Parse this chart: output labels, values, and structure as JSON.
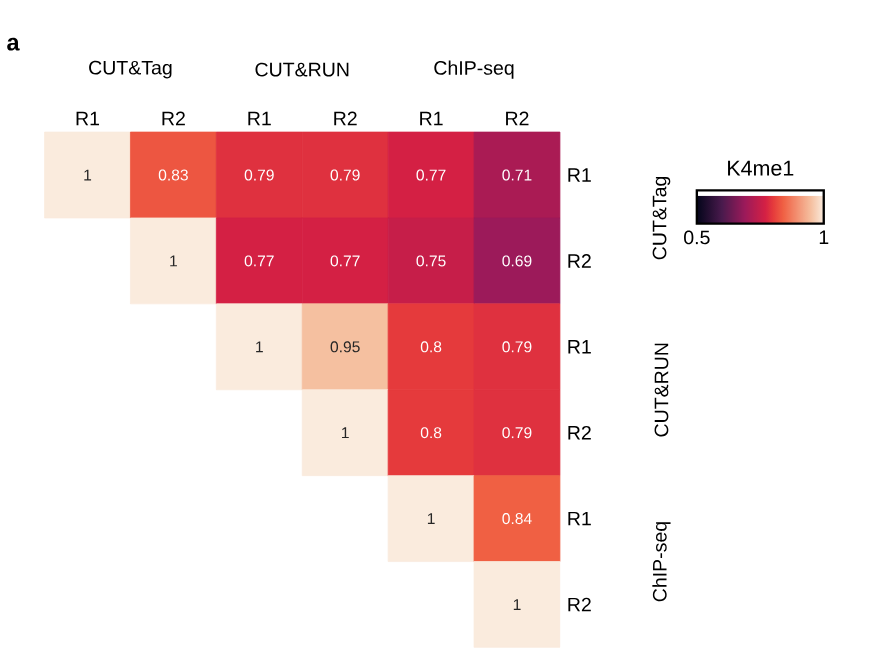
{
  "chart_data": {
    "type": "heatmap",
    "categories": [
      "R1",
      "R2",
      "R1",
      "R2",
      "R1",
      "R2"
    ],
    "y_categories": [
      "R1",
      "R2",
      "R1",
      "R2",
      "R1",
      "R2"
    ],
    "cells": [
      [
        1,
        0.83,
        0.79,
        0.79,
        0.77,
        0.71
      ],
      [
        null,
        1,
        0.77,
        0.77,
        0.75,
        0.69
      ],
      [
        null,
        null,
        1,
        0.95,
        0.8,
        0.79
      ],
      [
        null,
        null,
        null,
        1,
        0.8,
        0.79
      ],
      [
        null,
        null,
        null,
        null,
        1,
        0.84
      ],
      [
        null,
        null,
        null,
        null,
        null,
        1
      ]
    ],
    "data_labels": true,
    "clim": [
      0.5,
      1
    ],
    "cticks": [
      0.5,
      1
    ],
    "clabel": "K4me1",
    "annotations": [
      "a",
      "CUT&Tag",
      "CUT&RUN",
      "ChIP-seq",
      "CUT&Tag",
      "CUT&RUN",
      "ChIP-seq"
    ]
  }
}
